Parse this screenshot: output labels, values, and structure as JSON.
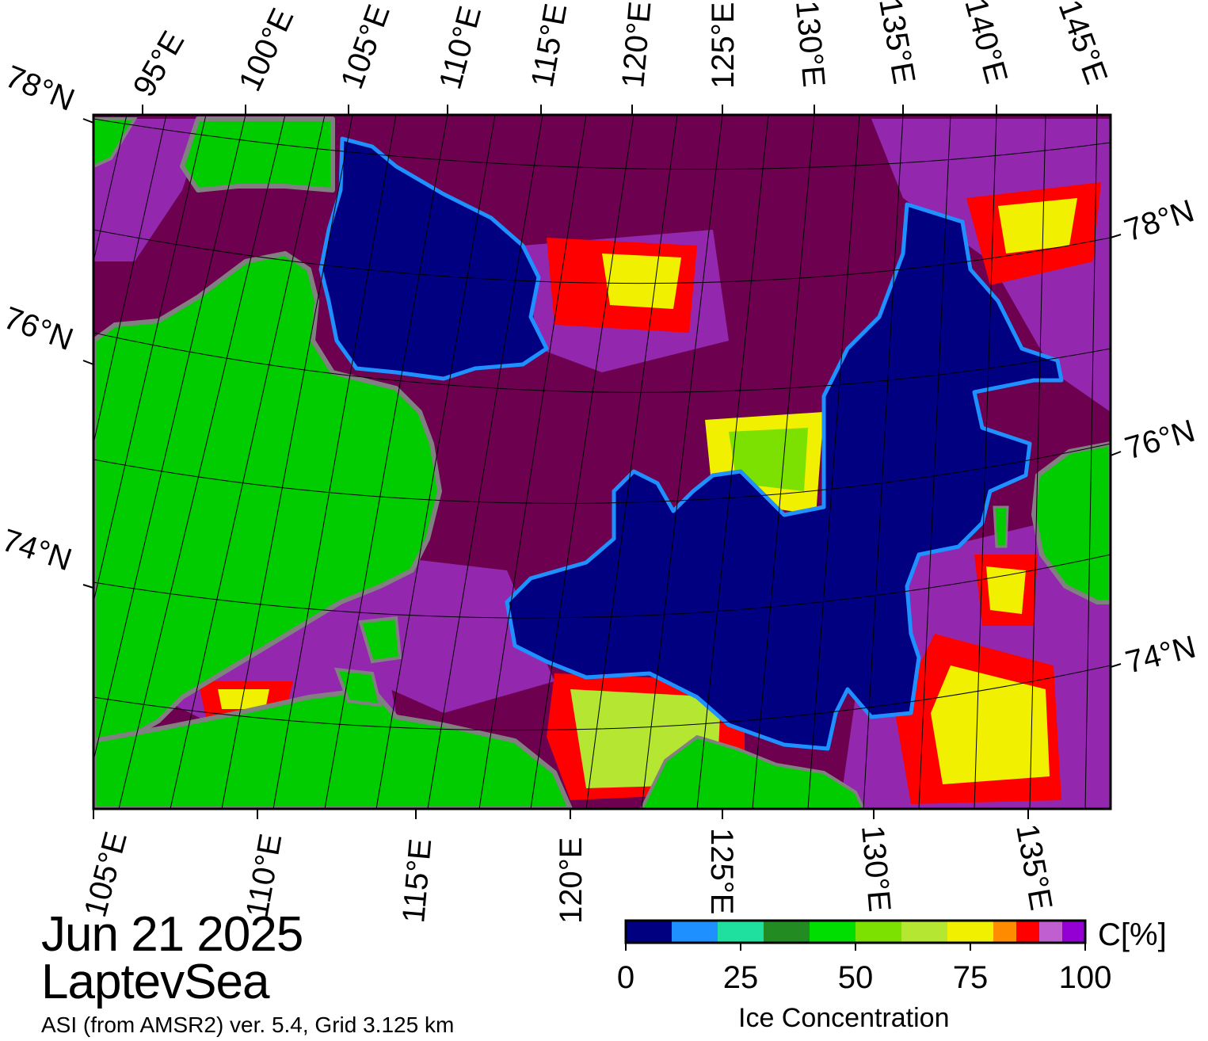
{
  "map": {
    "date": "Jun 21 2025",
    "region": "LaptevSea",
    "source_note": "ASI (from AMSR2) ver. 5.4,  Grid 3.125 km",
    "top_lon_labels": [
      "95°E",
      "100°E",
      "105°E",
      "110°E",
      "115°E",
      "120°E",
      "125°E",
      "130°E",
      "135°E",
      "140°E",
      "145°E"
    ],
    "bottom_lon_labels": [
      "105°E",
      "110°E",
      "115°E",
      "120°E",
      "125°E",
      "130°E",
      "135°E"
    ],
    "left_lat_labels": [
      "78°N",
      "76°N",
      "74°N"
    ],
    "right_lat_labels": [
      "78°N",
      "76°N",
      "74°N"
    ],
    "colors": {
      "land": "#00cc00",
      "land_mask": "#808080",
      "open_water": "#000080",
      "dense_ice": "#6e0050"
    }
  },
  "colorbar": {
    "title": "Ice Concentration",
    "unit": "C[%]",
    "tick_labels": [
      "0",
      "25",
      "50",
      "75",
      "100"
    ],
    "range": [
      0,
      100
    ],
    "bins": [
      {
        "from": 0,
        "to": 10,
        "color": "#000080"
      },
      {
        "from": 10,
        "to": 20,
        "color": "#1e90ff"
      },
      {
        "from": 20,
        "to": 30,
        "color": "#20e0a0"
      },
      {
        "from": 30,
        "to": 40,
        "color": "#228b22"
      },
      {
        "from": 40,
        "to": 50,
        "color": "#00dd00"
      },
      {
        "from": 50,
        "to": 60,
        "color": "#7ce000"
      },
      {
        "from": 60,
        "to": 70,
        "color": "#b4e632"
      },
      {
        "from": 70,
        "to": 80,
        "color": "#f0f000"
      },
      {
        "from": 80,
        "to": 85,
        "color": "#ff8c00"
      },
      {
        "from": 85,
        "to": 90,
        "color": "#ff0000"
      },
      {
        "from": 90,
        "to": 95,
        "color": "#c060d0"
      },
      {
        "from": 95,
        "to": 100,
        "color": "#9400d3"
      }
    ]
  }
}
